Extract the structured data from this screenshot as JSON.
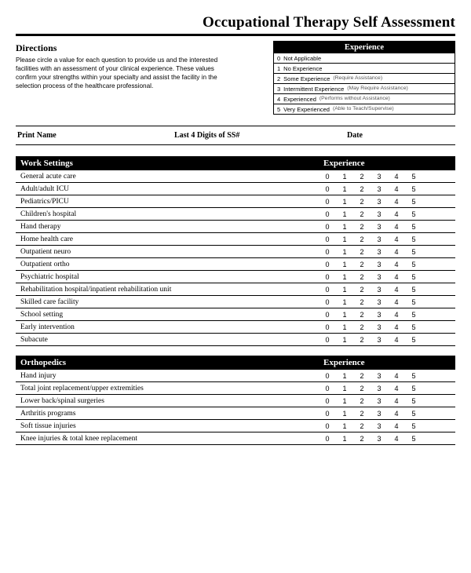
{
  "colors": {
    "black": "#000000",
    "white": "#ffffff",
    "muted": "#555555"
  },
  "title": "Occupational Therapy Self Assessment",
  "directions": {
    "heading": "Directions",
    "body": "Please circle a value for each question to provide us and the interested facilities with an assessment of your clinical experience. These values confirm your strengths within your specialty and assist the facility in the selection process of the healthcare professional."
  },
  "experience_legend": {
    "header": "Experience",
    "levels": [
      {
        "num": "0",
        "label": "Not Applicable",
        "note": ""
      },
      {
        "num": "1",
        "label": "No Experience",
        "note": ""
      },
      {
        "num": "2",
        "label": "Some Experience",
        "note": "(Require Assistance)"
      },
      {
        "num": "3",
        "label": "Intermittent Experience",
        "note": "(May Require Assistance)"
      },
      {
        "num": "4",
        "label": "Experienced",
        "note": "(Performs without Assistance)"
      },
      {
        "num": "5",
        "label": "Very Experienced",
        "note": "(Able to Teach/Supervise)"
      }
    ]
  },
  "fields": {
    "print_name": "Print Name",
    "ss": "Last 4 Digits of SS#",
    "date": "Date"
  },
  "scale_values": [
    "0",
    "1",
    "2",
    "3",
    "4",
    "5"
  ],
  "sections": [
    {
      "title": "Work Settings",
      "scale_header": "Experience",
      "items": [
        "General acute care",
        "Adult/adult ICU",
        "Pediatrics/PICU",
        "Children's hospital",
        "Hand therapy",
        "Home health care",
        "Outpatient neuro",
        "Outpatient ortho",
        "Psychiatric hospital",
        "Rehabilitation hospital/inpatient rehabilitation unit",
        "Skilled care facility",
        "School setting",
        "Early intervention",
        "Subacute"
      ]
    },
    {
      "title": "Orthopedics",
      "scale_header": "Experience",
      "items": [
        "Hand injury",
        "Total joint replacement/upper extremities",
        "Lower back/spinal surgeries",
        "Arthritis programs",
        "Soft tissue injuries",
        "Knee injuries & total knee replacement"
      ]
    }
  ]
}
